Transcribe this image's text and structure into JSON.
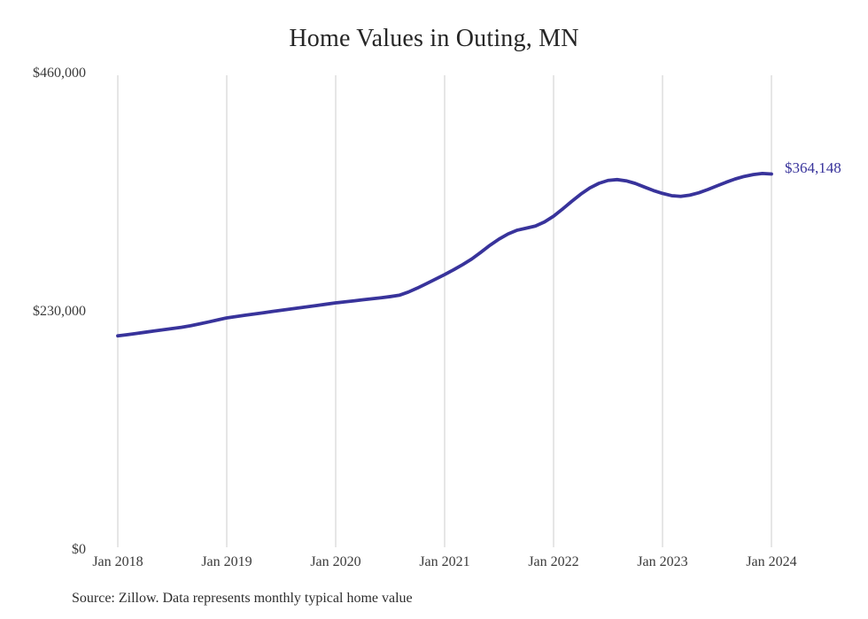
{
  "chart": {
    "title": "Home Values in Outing, MN",
    "end_label": "$364,148",
    "source": "Source: Zillow. Data represents monthly typical home value"
  },
  "chart_data": {
    "type": "line",
    "title": "Home Values in Outing, MN",
    "xlabel": "",
    "ylabel": "",
    "ylim": [
      0,
      460000
    ],
    "grid": "vertical-only",
    "legend": "none",
    "line_color": "#38339b",
    "gridline_color": "#cccccc",
    "last_value": 364148,
    "last_value_label": "$364,148",
    "y_ticks": [
      {
        "label": "$460,000",
        "value": 460000
      },
      {
        "label": "$230,000",
        "value": 230000
      },
      {
        "label": "$0",
        "value": 0
      }
    ],
    "x_tick_labels": [
      "Jan 2018",
      "Jan 2019",
      "Jan 2020",
      "Jan 2021",
      "Jan 2022",
      "Jan 2023",
      "Jan 2024"
    ],
    "x": [
      "2018-01",
      "2018-02",
      "2018-03",
      "2018-04",
      "2018-05",
      "2018-06",
      "2018-07",
      "2018-08",
      "2018-09",
      "2018-10",
      "2018-11",
      "2018-12",
      "2019-01",
      "2019-02",
      "2019-03",
      "2019-04",
      "2019-05",
      "2019-06",
      "2019-07",
      "2019-08",
      "2019-09",
      "2019-10",
      "2019-11",
      "2019-12",
      "2020-01",
      "2020-02",
      "2020-03",
      "2020-04",
      "2020-05",
      "2020-06",
      "2020-07",
      "2020-08",
      "2020-09",
      "2020-10",
      "2020-11",
      "2020-12",
      "2021-01",
      "2021-02",
      "2021-03",
      "2021-04",
      "2021-05",
      "2021-06",
      "2021-07",
      "2021-08",
      "2021-09",
      "2021-10",
      "2021-11",
      "2021-12",
      "2022-01",
      "2022-02",
      "2022-03",
      "2022-04",
      "2022-05",
      "2022-06",
      "2022-07",
      "2022-08",
      "2022-09",
      "2022-10",
      "2022-11",
      "2022-12",
      "2023-01",
      "2023-02",
      "2023-03",
      "2023-04",
      "2023-05",
      "2023-06",
      "2023-07",
      "2023-08",
      "2023-09",
      "2023-10",
      "2023-11",
      "2023-12",
      "2024-01"
    ],
    "series": [
      {
        "name": "Monthly typical home value",
        "values": [
          207000,
          208100,
          209300,
          210500,
          211700,
          212900,
          214100,
          215300,
          216800,
          218600,
          220500,
          222500,
          224400,
          225700,
          227000,
          228200,
          229400,
          230600,
          231800,
          233000,
          234200,
          235400,
          236600,
          237800,
          239000,
          240000,
          241000,
          242000,
          243000,
          244000,
          245100,
          246400,
          249500,
          253400,
          257700,
          262100,
          266500,
          271200,
          276200,
          281700,
          288200,
          295000,
          301000,
          306000,
          309600,
          311600,
          313600,
          317600,
          323200,
          330200,
          337600,
          344600,
          350600,
          355100,
          357900,
          358700,
          357500,
          355000,
          351500,
          348100,
          345300,
          343100,
          342400,
          343600,
          345900,
          349100,
          352600,
          356100,
          359300,
          361800,
          363600,
          364700,
          364148
        ]
      }
    ]
  }
}
